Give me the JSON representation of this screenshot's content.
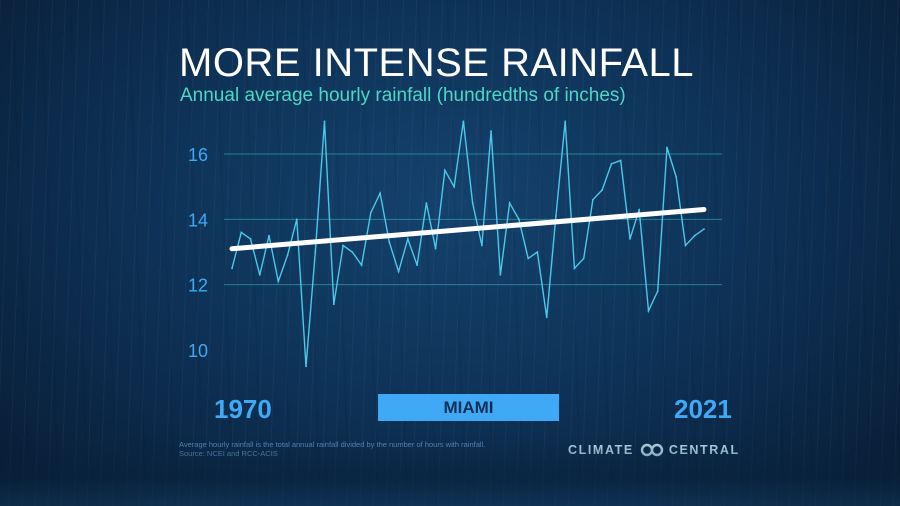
{
  "title": "MORE INTENSE RAINFALL",
  "subtitle": "Annual average hourly rainfall (hundredths of inches)",
  "start_year_label": "1970",
  "end_year_label": "2021",
  "city_label": "MIAMI",
  "footnote": {
    "line1": "Average hourly rainfall is the total annual rainfall divided by the number of hours with rainfall.",
    "line2": "Source: NCEI and RCC-ACIS"
  },
  "brand": {
    "left": "CLIMATE",
    "right": "CENTRAL",
    "icon": "infinity-icon"
  },
  "colors": {
    "series": "#4cc8e8",
    "trend": "#ffffff",
    "grid": "#2e9aa6",
    "tick": "#3fa9f5",
    "city_bar": "#3fa9f5"
  },
  "chart_data": {
    "type": "line",
    "title": "MORE INTENSE RAINFALL",
    "ylabel": "Annual average hourly rainfall (hundredths of inches)",
    "ylim": [
      9.5,
      17.0
    ],
    "yticks": [
      10,
      12,
      14,
      16
    ],
    "grid": true,
    "x": [
      1970,
      1971,
      1972,
      1973,
      1974,
      1975,
      1976,
      1977,
      1978,
      1979,
      1980,
      1981,
      1982,
      1983,
      1984,
      1985,
      1986,
      1987,
      1988,
      1989,
      1990,
      1991,
      1992,
      1993,
      1994,
      1995,
      1996,
      1997,
      1998,
      1999,
      2000,
      2001,
      2002,
      2003,
      2004,
      2005,
      2006,
      2007,
      2008,
      2009,
      2010,
      2011,
      2012,
      2013,
      2014,
      2015,
      2016,
      2017,
      2018,
      2019,
      2020,
      2021
    ],
    "series": [
      {
        "values": [
          12.5,
          13.6,
          13.4,
          12.3,
          13.5,
          12.1,
          12.9,
          14.0,
          9.5,
          13.0,
          17.0,
          11.4,
          13.2,
          13.0,
          12.6,
          14.2,
          14.8,
          13.3,
          12.4,
          13.4,
          12.6,
          14.5,
          13.1,
          15.5,
          15.0,
          17.0,
          14.5,
          13.2,
          16.7,
          12.3,
          14.5,
          14.0,
          12.8,
          13.0,
          11.0,
          14.1,
          17.0,
          12.5,
          12.8,
          14.6,
          14.9,
          15.7,
          15.8,
          13.4,
          14.3,
          11.2,
          11.8,
          16.2,
          15.3,
          13.2,
          13.5,
          13.7
        ]
      }
    ],
    "trend": {
      "x": [
        1970,
        2021
      ],
      "values": [
        13.1,
        14.3
      ]
    }
  }
}
